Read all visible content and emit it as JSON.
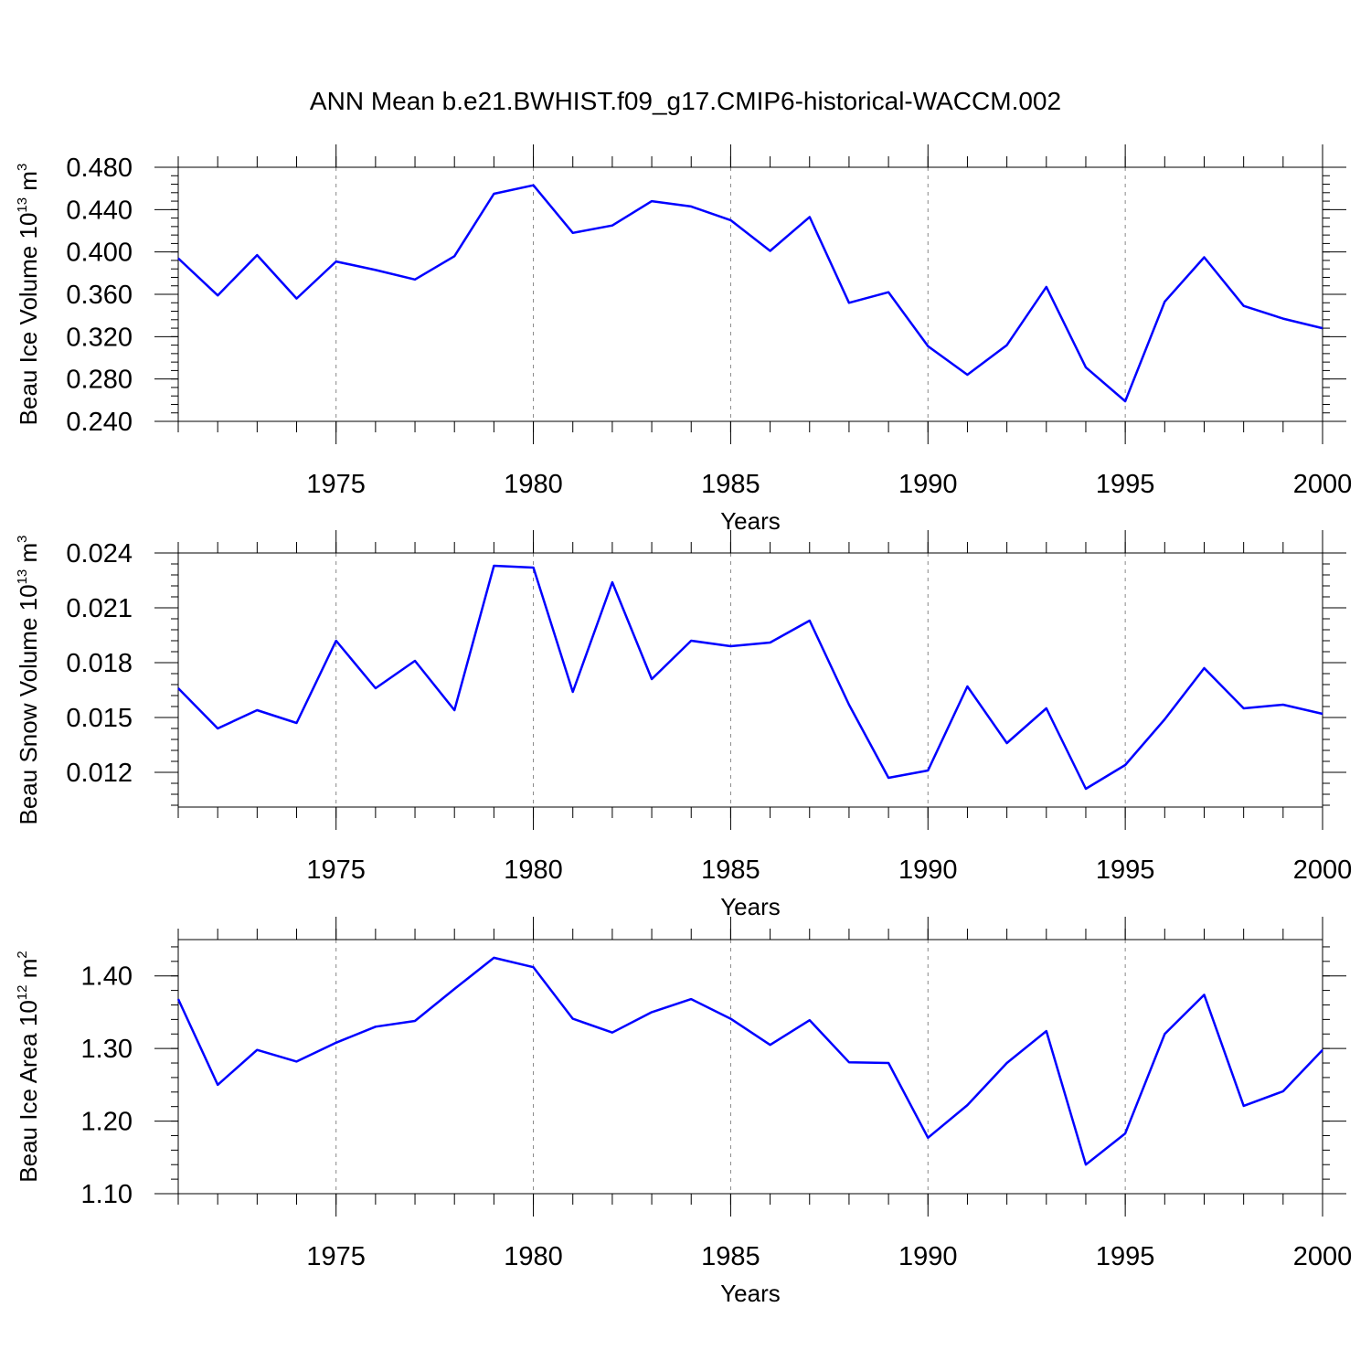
{
  "title": "ANN Mean b.e21.BWHIST.f09_g17.CMIP6-historical-WACCM.002",
  "chart_data": [
    {
      "type": "line",
      "ylabel_main": "Beau Ice Volume 10",
      "ylabel_exp": "13",
      "ylabel_unit": " m",
      "ylabel_unit_exp": "3",
      "xlabel": "Years",
      "xlim": [
        1971,
        2000
      ],
      "ylim": [
        0.24,
        0.48
      ],
      "ytick_values": [
        0.24,
        0.28,
        0.32,
        0.36,
        0.4,
        0.44,
        0.48
      ],
      "ytick_labels": [
        "0.240",
        "0.280",
        "0.320",
        "0.360",
        "0.400",
        "0.440",
        "0.480"
      ],
      "ytick_minor_step": 0.008,
      "xtick_values": [
        1975,
        1980,
        1985,
        1990,
        1995,
        2000
      ],
      "xtick_labels": [
        "1975",
        "1980",
        "1985",
        "1990",
        "1995",
        "2000"
      ],
      "grid_x": [
        1975,
        1980,
        1985,
        1990,
        1995
      ],
      "color": "#0000ff",
      "x": [
        1971,
        1972,
        1973,
        1974,
        1975,
        1976,
        1977,
        1978,
        1979,
        1980,
        1981,
        1982,
        1983,
        1984,
        1985,
        1986,
        1987,
        1988,
        1989,
        1990,
        1991,
        1992,
        1993,
        1994,
        1995,
        1996,
        1997,
        1998,
        1999,
        2000
      ],
      "values": [
        0.394,
        0.359,
        0.397,
        0.356,
        0.391,
        0.383,
        0.374,
        0.396,
        0.455,
        0.463,
        0.418,
        0.425,
        0.448,
        0.443,
        0.43,
        0.401,
        0.433,
        0.352,
        0.362,
        0.311,
        0.284,
        0.312,
        0.367,
        0.291,
        0.259,
        0.353,
        0.395,
        0.349,
        0.337,
        0.328
      ]
    },
    {
      "type": "line",
      "ylabel_main": "Beau Snow Volume 10",
      "ylabel_exp": "13",
      "ylabel_unit": " m",
      "ylabel_unit_exp": "3",
      "xlabel": "Years",
      "xlim": [
        1971,
        2000
      ],
      "ylim": [
        0.0101,
        0.024
      ],
      "ytick_values": [
        0.012,
        0.015,
        0.018,
        0.021,
        0.024
      ],
      "ytick_labels": [
        "0.012",
        "0.015",
        "0.018",
        "0.021",
        "0.024"
      ],
      "ytick_minor_step": 0.0006,
      "xtick_values": [
        1975,
        1980,
        1985,
        1990,
        1995,
        2000
      ],
      "xtick_labels": [
        "1975",
        "1980",
        "1985",
        "1990",
        "1995",
        "2000"
      ],
      "grid_x": [
        1975,
        1980,
        1985,
        1990,
        1995
      ],
      "color": "#0000ff",
      "x": [
        1971,
        1972,
        1973,
        1974,
        1975,
        1976,
        1977,
        1978,
        1979,
        1980,
        1981,
        1982,
        1983,
        1984,
        1985,
        1986,
        1987,
        1988,
        1989,
        1990,
        1991,
        1992,
        1993,
        1994,
        1995,
        1996,
        1997,
        1998,
        1999,
        2000
      ],
      "values": [
        0.0166,
        0.0144,
        0.0154,
        0.0147,
        0.0192,
        0.0166,
        0.0181,
        0.0154,
        0.0233,
        0.0232,
        0.0164,
        0.0224,
        0.0171,
        0.0192,
        0.0189,
        0.0191,
        0.0203,
        0.0157,
        0.0117,
        0.0121,
        0.0167,
        0.0136,
        0.0155,
        0.0111,
        0.0124,
        0.0149,
        0.0177,
        0.0155,
        0.0157,
        0.0152
      ]
    },
    {
      "type": "line",
      "ylabel_main": "Beau Ice Area 10",
      "ylabel_exp": "12",
      "ylabel_unit": " m",
      "ylabel_unit_exp": "2",
      "xlabel": "Years",
      "xlim": [
        1971,
        2000
      ],
      "ylim": [
        1.1,
        1.45
      ],
      "ytick_values": [
        1.1,
        1.2,
        1.3,
        1.4
      ],
      "ytick_labels": [
        "1.10",
        "1.20",
        "1.30",
        "1.40"
      ],
      "ytick_minor_step": 0.02,
      "xtick_values": [
        1975,
        1980,
        1985,
        1990,
        1995,
        2000
      ],
      "xtick_labels": [
        "1975",
        "1980",
        "1985",
        "1990",
        "1995",
        "2000"
      ],
      "grid_x": [
        1975,
        1980,
        1985,
        1990,
        1995
      ],
      "color": "#0000ff",
      "x": [
        1971,
        1972,
        1973,
        1974,
        1975,
        1976,
        1977,
        1978,
        1979,
        1980,
        1981,
        1982,
        1983,
        1984,
        1985,
        1986,
        1987,
        1988,
        1989,
        1990,
        1991,
        1992,
        1993,
        1994,
        1995,
        1996,
        1997,
        1998,
        1999,
        2000
      ],
      "values": [
        1.368,
        1.25,
        1.298,
        1.282,
        1.308,
        1.33,
        1.338,
        1.382,
        1.425,
        1.412,
        1.341,
        1.322,
        1.35,
        1.368,
        1.341,
        1.305,
        1.339,
        1.281,
        1.28,
        1.177,
        1.222,
        1.28,
        1.324,
        1.14,
        1.183,
        1.32,
        1.374,
        1.221,
        1.241,
        1.298
      ]
    }
  ]
}
